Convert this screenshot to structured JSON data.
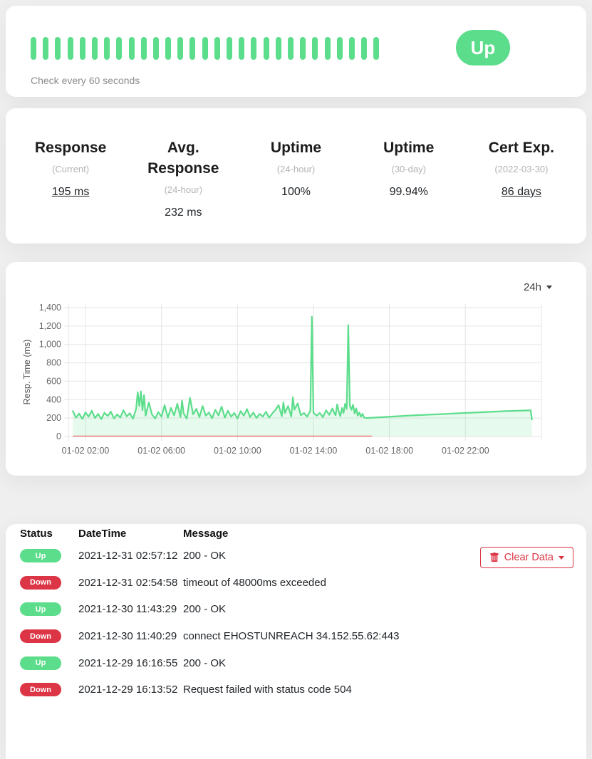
{
  "colors": {
    "green": "#5cdd8b",
    "red": "#dc3545",
    "chart_baseline_red": "#e2605f",
    "grid": "#e5e5e5",
    "tick_text": "#666666"
  },
  "monitor": {
    "status_label": "Up",
    "check_interval_text": "Check every 60 seconds",
    "heartbeats": [
      "up",
      "up",
      "up",
      "up",
      "up",
      "up",
      "up",
      "up",
      "up",
      "up",
      "up",
      "up",
      "up",
      "up",
      "up",
      "up",
      "up",
      "up",
      "up",
      "up",
      "up",
      "up",
      "up",
      "up",
      "up",
      "up",
      "up",
      "up",
      "up"
    ]
  },
  "stats": [
    {
      "title": "Response",
      "sub": "(Current)",
      "value": "195 ms",
      "underline": true
    },
    {
      "title": "Avg. Response",
      "sub": "(24-hour)",
      "value": "232 ms",
      "underline": false
    },
    {
      "title": "Uptime",
      "sub": "(24-hour)",
      "value": "100%",
      "underline": false
    },
    {
      "title": "Uptime",
      "sub": "(30-day)",
      "value": "99.94%",
      "underline": false
    },
    {
      "title": "Cert Exp.",
      "sub": "(2022-03-30)",
      "value": "86 days",
      "underline": true
    }
  ],
  "chart": {
    "period_label": "24h"
  },
  "chart_data": {
    "type": "area",
    "title": "",
    "xlabel": "",
    "ylabel": "Resp. Time (ms)",
    "ylim": [
      0,
      1400
    ],
    "yticks": [
      0,
      200,
      400,
      600,
      800,
      1000,
      1200,
      1400
    ],
    "x_domain_minutes": [
      66,
      1560
    ],
    "x_ticks": [
      {
        "minute": 120,
        "label": "01-02 02:00"
      },
      {
        "minute": 360,
        "label": "01-02 06:00"
      },
      {
        "minute": 600,
        "label": "01-02 10:00"
      },
      {
        "minute": 840,
        "label": "01-02 14:00"
      },
      {
        "minute": 1080,
        "label": "01-02 18:00"
      },
      {
        "minute": 1320,
        "label": "01-02 22:00"
      },
      {
        "minute": 1560,
        "label": ""
      }
    ],
    "grid": true,
    "legend": "none",
    "series": [
      {
        "name": "resp_time_ms",
        "color": "#5cdd8b",
        "fill_opacity": 0.15,
        "points": [
          [
            80,
            275
          ],
          [
            90,
            205
          ],
          [
            100,
            248
          ],
          [
            110,
            190
          ],
          [
            120,
            262
          ],
          [
            130,
            215
          ],
          [
            140,
            280
          ],
          [
            150,
            200
          ],
          [
            160,
            245
          ],
          [
            170,
            188
          ],
          [
            180,
            258
          ],
          [
            190,
            222
          ],
          [
            200,
            270
          ],
          [
            210,
            195
          ],
          [
            220,
            240
          ],
          [
            230,
            205
          ],
          [
            240,
            285
          ],
          [
            250,
            218
          ],
          [
            260,
            252
          ],
          [
            270,
            192
          ],
          [
            280,
            300
          ],
          [
            285,
            480
          ],
          [
            290,
            330
          ],
          [
            295,
            490
          ],
          [
            300,
            285
          ],
          [
            305,
            450
          ],
          [
            310,
            225
          ],
          [
            320,
            370
          ],
          [
            330,
            240
          ],
          [
            340,
            195
          ],
          [
            350,
            265
          ],
          [
            360,
            215
          ],
          [
            370,
            340
          ],
          [
            380,
            205
          ],
          [
            390,
            310
          ],
          [
            400,
            230
          ],
          [
            410,
            355
          ],
          [
            420,
            210
          ],
          [
            425,
            390
          ],
          [
            430,
            250
          ],
          [
            440,
            195
          ],
          [
            450,
            420
          ],
          [
            460,
            240
          ],
          [
            470,
            300
          ],
          [
            480,
            210
          ],
          [
            490,
            330
          ],
          [
            500,
            225
          ],
          [
            510,
            260
          ],
          [
            520,
            198
          ],
          [
            530,
            290
          ],
          [
            540,
            230
          ],
          [
            550,
            325
          ],
          [
            560,
            205
          ],
          [
            570,
            280
          ],
          [
            580,
            215
          ],
          [
            590,
            255
          ],
          [
            600,
            195
          ],
          [
            610,
            275
          ],
          [
            620,
            225
          ],
          [
            630,
            298
          ],
          [
            640,
            210
          ],
          [
            650,
            260
          ],
          [
            660,
            200
          ],
          [
            670,
            245
          ],
          [
            680,
            215
          ],
          [
            690,
            268
          ],
          [
            700,
            205
          ],
          [
            710,
            250
          ],
          [
            720,
            290
          ],
          [
            730,
            340
          ],
          [
            740,
            220
          ],
          [
            745,
            370
          ],
          [
            750,
            255
          ],
          [
            760,
            330
          ],
          [
            770,
            215
          ],
          [
            775,
            425
          ],
          [
            780,
            290
          ],
          [
            790,
            360
          ],
          [
            800,
            230
          ],
          [
            810,
            255
          ],
          [
            820,
            215
          ],
          [
            830,
            280
          ],
          [
            835,
            1300
          ],
          [
            840,
            260
          ],
          [
            850,
            225
          ],
          [
            860,
            255
          ],
          [
            870,
            210
          ],
          [
            880,
            285
          ],
          [
            890,
            235
          ],
          [
            900,
            305
          ],
          [
            905,
            260
          ],
          [
            910,
            230
          ],
          [
            915,
            350
          ],
          [
            920,
            270
          ],
          [
            925,
            220
          ],
          [
            930,
            310
          ],
          [
            935,
            255
          ],
          [
            940,
            355
          ],
          [
            945,
            300
          ],
          [
            950,
            1210
          ],
          [
            955,
            335
          ],
          [
            960,
            290
          ],
          [
            965,
            345
          ],
          [
            970,
            250
          ],
          [
            975,
            305
          ],
          [
            980,
            225
          ],
          [
            985,
            260
          ],
          [
            990,
            215
          ],
          [
            995,
            245
          ],
          [
            1000,
            205
          ],
          [
            1008,
            200
          ],
          [
            1150,
            228
          ],
          [
            1300,
            252
          ],
          [
            1450,
            275
          ],
          [
            1520,
            283
          ],
          [
            1526,
            285
          ],
          [
            1530,
            185
          ]
        ]
      }
    ],
    "baseline_zero_segment": {
      "color": "#e2605f",
      "from_minute": 80,
      "to_minute": 1025
    }
  },
  "events": {
    "clear_button_label": "Clear Data",
    "columns": [
      "Status",
      "DateTime",
      "Message"
    ],
    "rows": [
      {
        "status": "Up",
        "datetime": "2021-12-31 02:57:12",
        "message": "200 - OK"
      },
      {
        "status": "Down",
        "datetime": "2021-12-31 02:54:58",
        "message": "timeout of 48000ms exceeded"
      },
      {
        "status": "Up",
        "datetime": "2021-12-30 11:43:29",
        "message": "200 - OK"
      },
      {
        "status": "Down",
        "datetime": "2021-12-30 11:40:29",
        "message": "connect EHOSTUNREACH 34.152.55.62:443"
      },
      {
        "status": "Up",
        "datetime": "2021-12-29 16:16:55",
        "message": "200 - OK"
      },
      {
        "status": "Down",
        "datetime": "2021-12-29 16:13:52",
        "message": "Request failed with status code 504"
      }
    ]
  }
}
